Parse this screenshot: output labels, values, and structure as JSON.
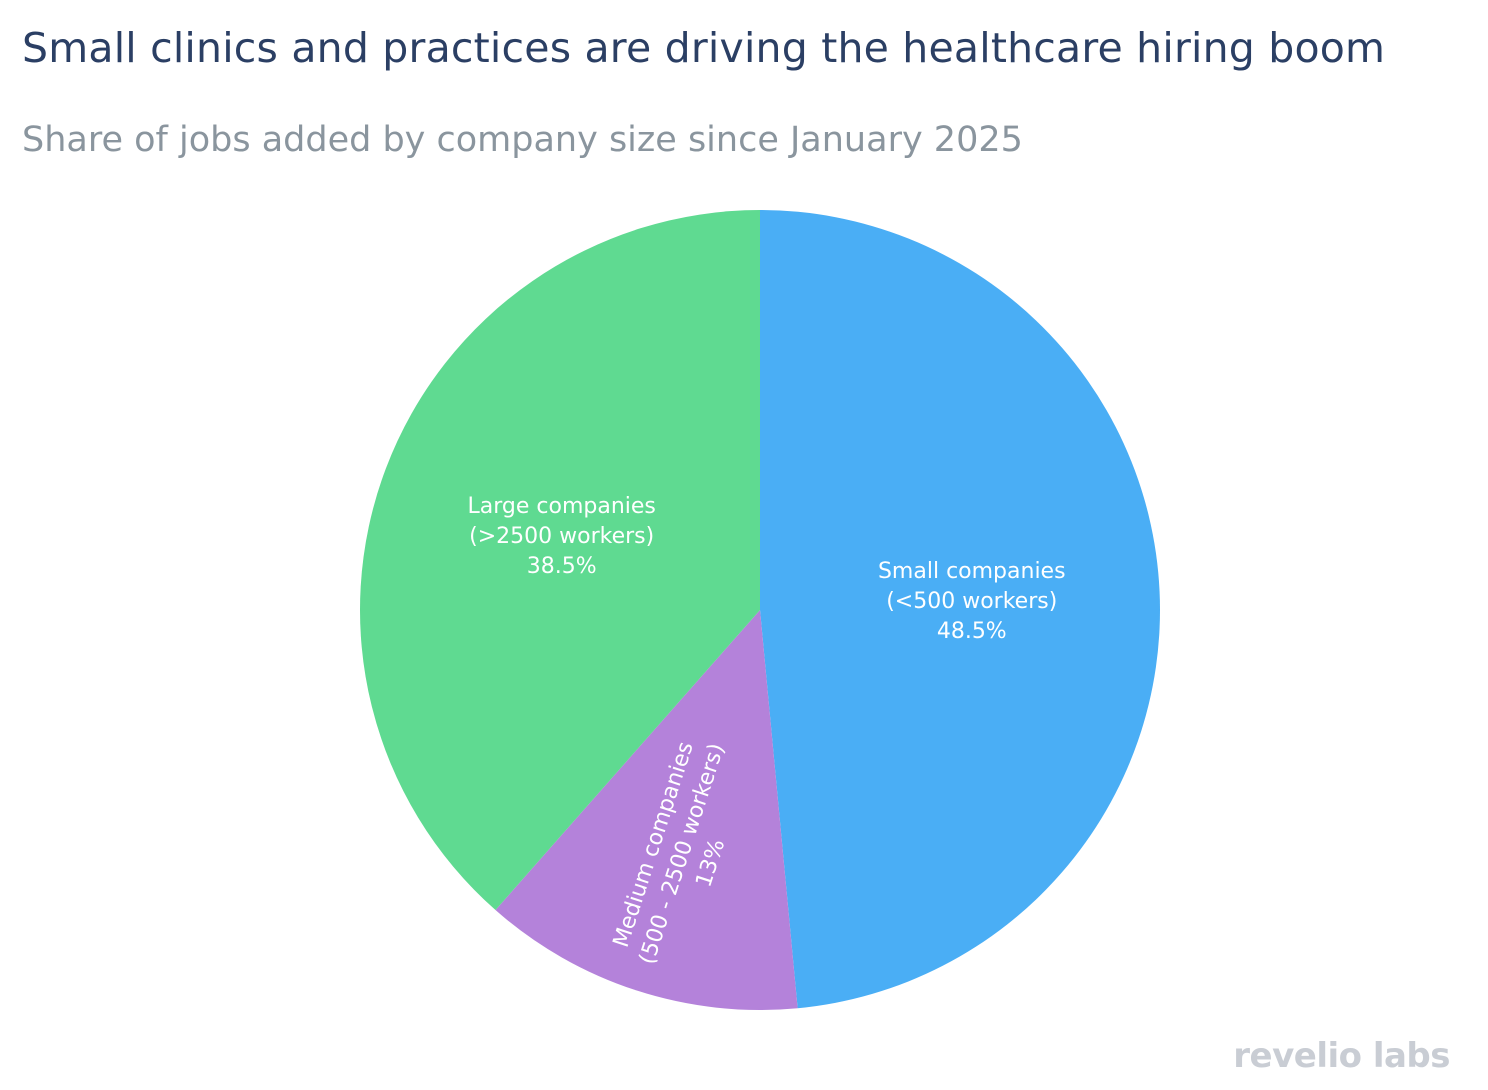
{
  "title": "Small clinics and practices are driving the healthcare hiring boom",
  "subtitle": "Share of jobs added by company size since January 2025",
  "watermark": "revelio labs",
  "chart_data": {
    "type": "pie",
    "title": "Small clinics and practices are driving the healthcare hiring boom",
    "subtitle": "Share of jobs added by company size since January 2025",
    "direction": "clockwise",
    "start": "top",
    "slices": [
      {
        "label_lines": [
          "Small companies",
          "(<500 workers)"
        ],
        "value": 48.5,
        "value_label": "48.5%",
        "color": "#4aaef5"
      },
      {
        "label_lines": [
          "Medium companies",
          "(500 - 2500 workers)"
        ],
        "value": 13,
        "value_label": "13%",
        "color": "#b482da"
      },
      {
        "label_lines": [
          "Large companies",
          "(>2500 workers)"
        ],
        "value": 38.5,
        "value_label": "38.5%",
        "color": "#5fda91"
      }
    ]
  }
}
